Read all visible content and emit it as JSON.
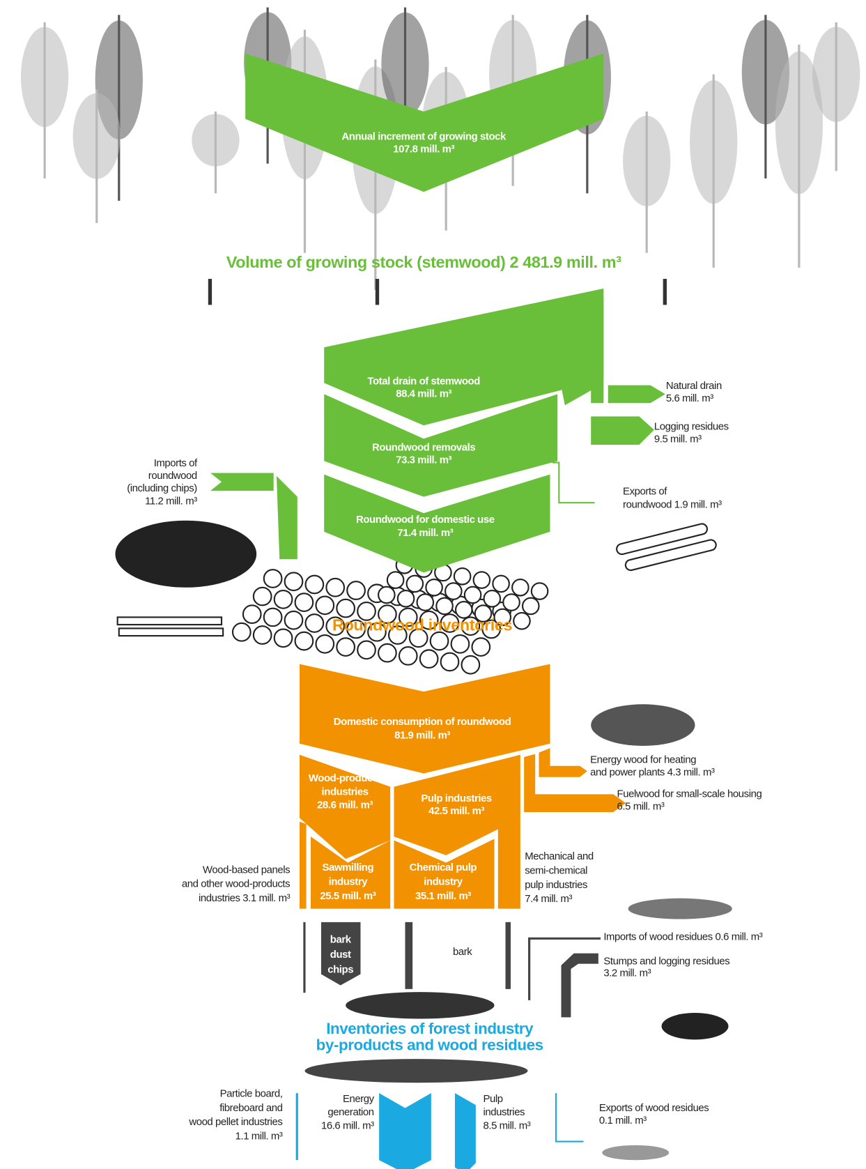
{
  "nodes": [
    {
      "lines": [
        "Annual increment of growing stock",
        "107.8 mill. m³"
      ]
    },
    {
      "lines": [
        "Volume of growing stock  (stemwood)  2 481.9 mill. m³"
      ]
    },
    {
      "lines": [
        "Total drain of stemwood",
        "88.4 mill. m³"
      ]
    },
    {
      "lines": [
        "Roundwood removals",
        "73.3 mill. m³"
      ]
    },
    {
      "lines": [
        "Roundwood for domestic use",
        "71.4 mill. m³"
      ]
    },
    {
      "lines": [
        "Natural drain",
        "5.6 mill. m³"
      ]
    },
    {
      "lines": [
        "Logging residues",
        "9.5 mill. m³"
      ]
    },
    {
      "lines": [
        "Exports of",
        "roundwood 1.9 mill. m³"
      ]
    },
    {
      "lines": [
        "Imports of",
        "roundwood",
        "(including chips)",
        "11.2 mill. m³"
      ]
    },
    {
      "lines": [
        "Roundwood inventories"
      ]
    },
    {
      "lines": [
        "Domestic consumption of roundwood",
        "81.9 mill. m³"
      ]
    },
    {
      "lines": [
        "Wood-products",
        "industries",
        "28.6 mill. m³"
      ]
    },
    {
      "lines": [
        "Pulp industries",
        "42.5 mill. m³"
      ]
    },
    {
      "lines": [
        "Energy wood for heating",
        "and power plants 4.3 mill. m³"
      ]
    },
    {
      "lines": [
        "Fuelwood for small-scale housing",
        "6.5 mill. m³"
      ]
    },
    {
      "lines": [
        "Wood-based panels",
        "and other wood-products",
        "industries 3.1 mill. m³"
      ]
    },
    {
      "lines": [
        "Sawmilling",
        "industry",
        "25.5 mill. m³"
      ]
    },
    {
      "lines": [
        "Chemical pulp",
        "industry",
        "35.1 mill. m³"
      ]
    },
    {
      "lines": [
        "Mechanical and",
        "semi-chemical",
        "pulp industries",
        "7.4 mill. m³"
      ]
    },
    {
      "lines": [
        "bark",
        "dust",
        "chips"
      ]
    },
    {
      "lines": [
        "bark"
      ]
    },
    {
      "lines": [
        "Imports of wood residues 0.6 mill. m³"
      ]
    },
    {
      "lines": [
        "Stumps and logging residues",
        "3.2 mill. m³"
      ]
    },
    {
      "lines": [
        "Inventories of forest industry",
        "by-products and wood residues"
      ]
    },
    {
      "lines": [
        "Particle board,",
        "fibreboard and",
        "wood pellet industries",
        "1.1 mill. m³"
      ]
    },
    {
      "lines": [
        "Energy",
        "generation",
        "16.6 mill. m³"
      ]
    },
    {
      "lines": [
        "Pulp",
        "industries",
        "8.5 mill. m³"
      ]
    },
    {
      "lines": [
        "Exports of wood residues",
        "0.1 mill. m³"
      ]
    }
  ]
}
